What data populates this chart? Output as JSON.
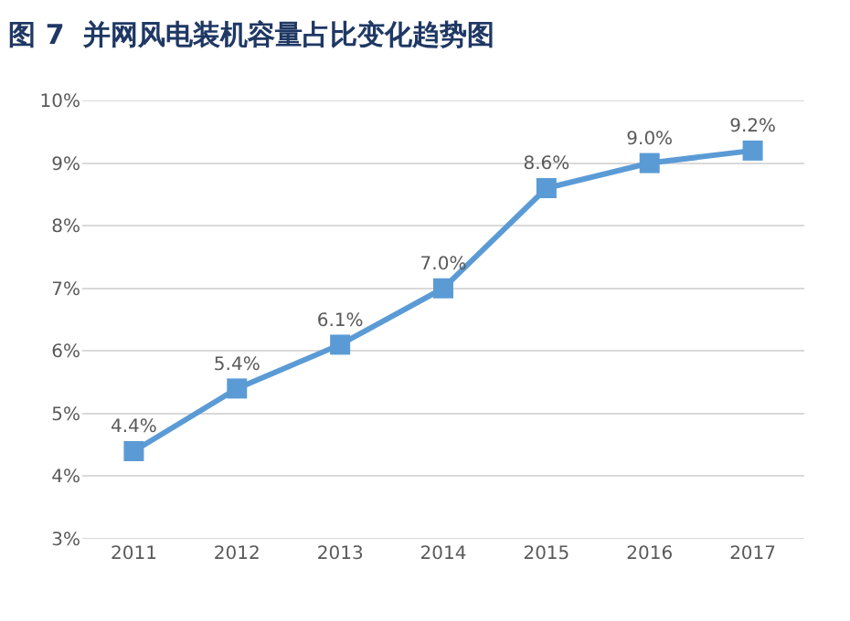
{
  "chart_data": {
    "type": "line",
    "title": "图 7  并网风电装机容量占比变化趋势图",
    "categories": [
      "2011",
      "2012",
      "2013",
      "2014",
      "2015",
      "2016",
      "2017"
    ],
    "series": [
      {
        "color": "#5b9bd5",
        "values": [
          4.4,
          5.4,
          6.1,
          7.0,
          8.6,
          9.0,
          9.2
        ],
        "value_labels": [
          "4.4%",
          "5.4%",
          "6.1%",
          "7.0%",
          "8.6%",
          "9.0%",
          "9.2%"
        ]
      }
    ],
    "ylim": [
      3,
      10
    ],
    "yticks": [
      {
        "value": 3,
        "label": "3%"
      },
      {
        "value": 4,
        "label": "4%"
      },
      {
        "value": 5,
        "label": "5%"
      },
      {
        "value": 6,
        "label": "6%"
      },
      {
        "value": 7,
        "label": "7%"
      },
      {
        "value": 8,
        "label": "8%"
      },
      {
        "value": 9,
        "label": "9%"
      },
      {
        "value": 10,
        "label": "10%"
      }
    ],
    "grid": "y",
    "marker": "square",
    "line_style": "solid"
  }
}
